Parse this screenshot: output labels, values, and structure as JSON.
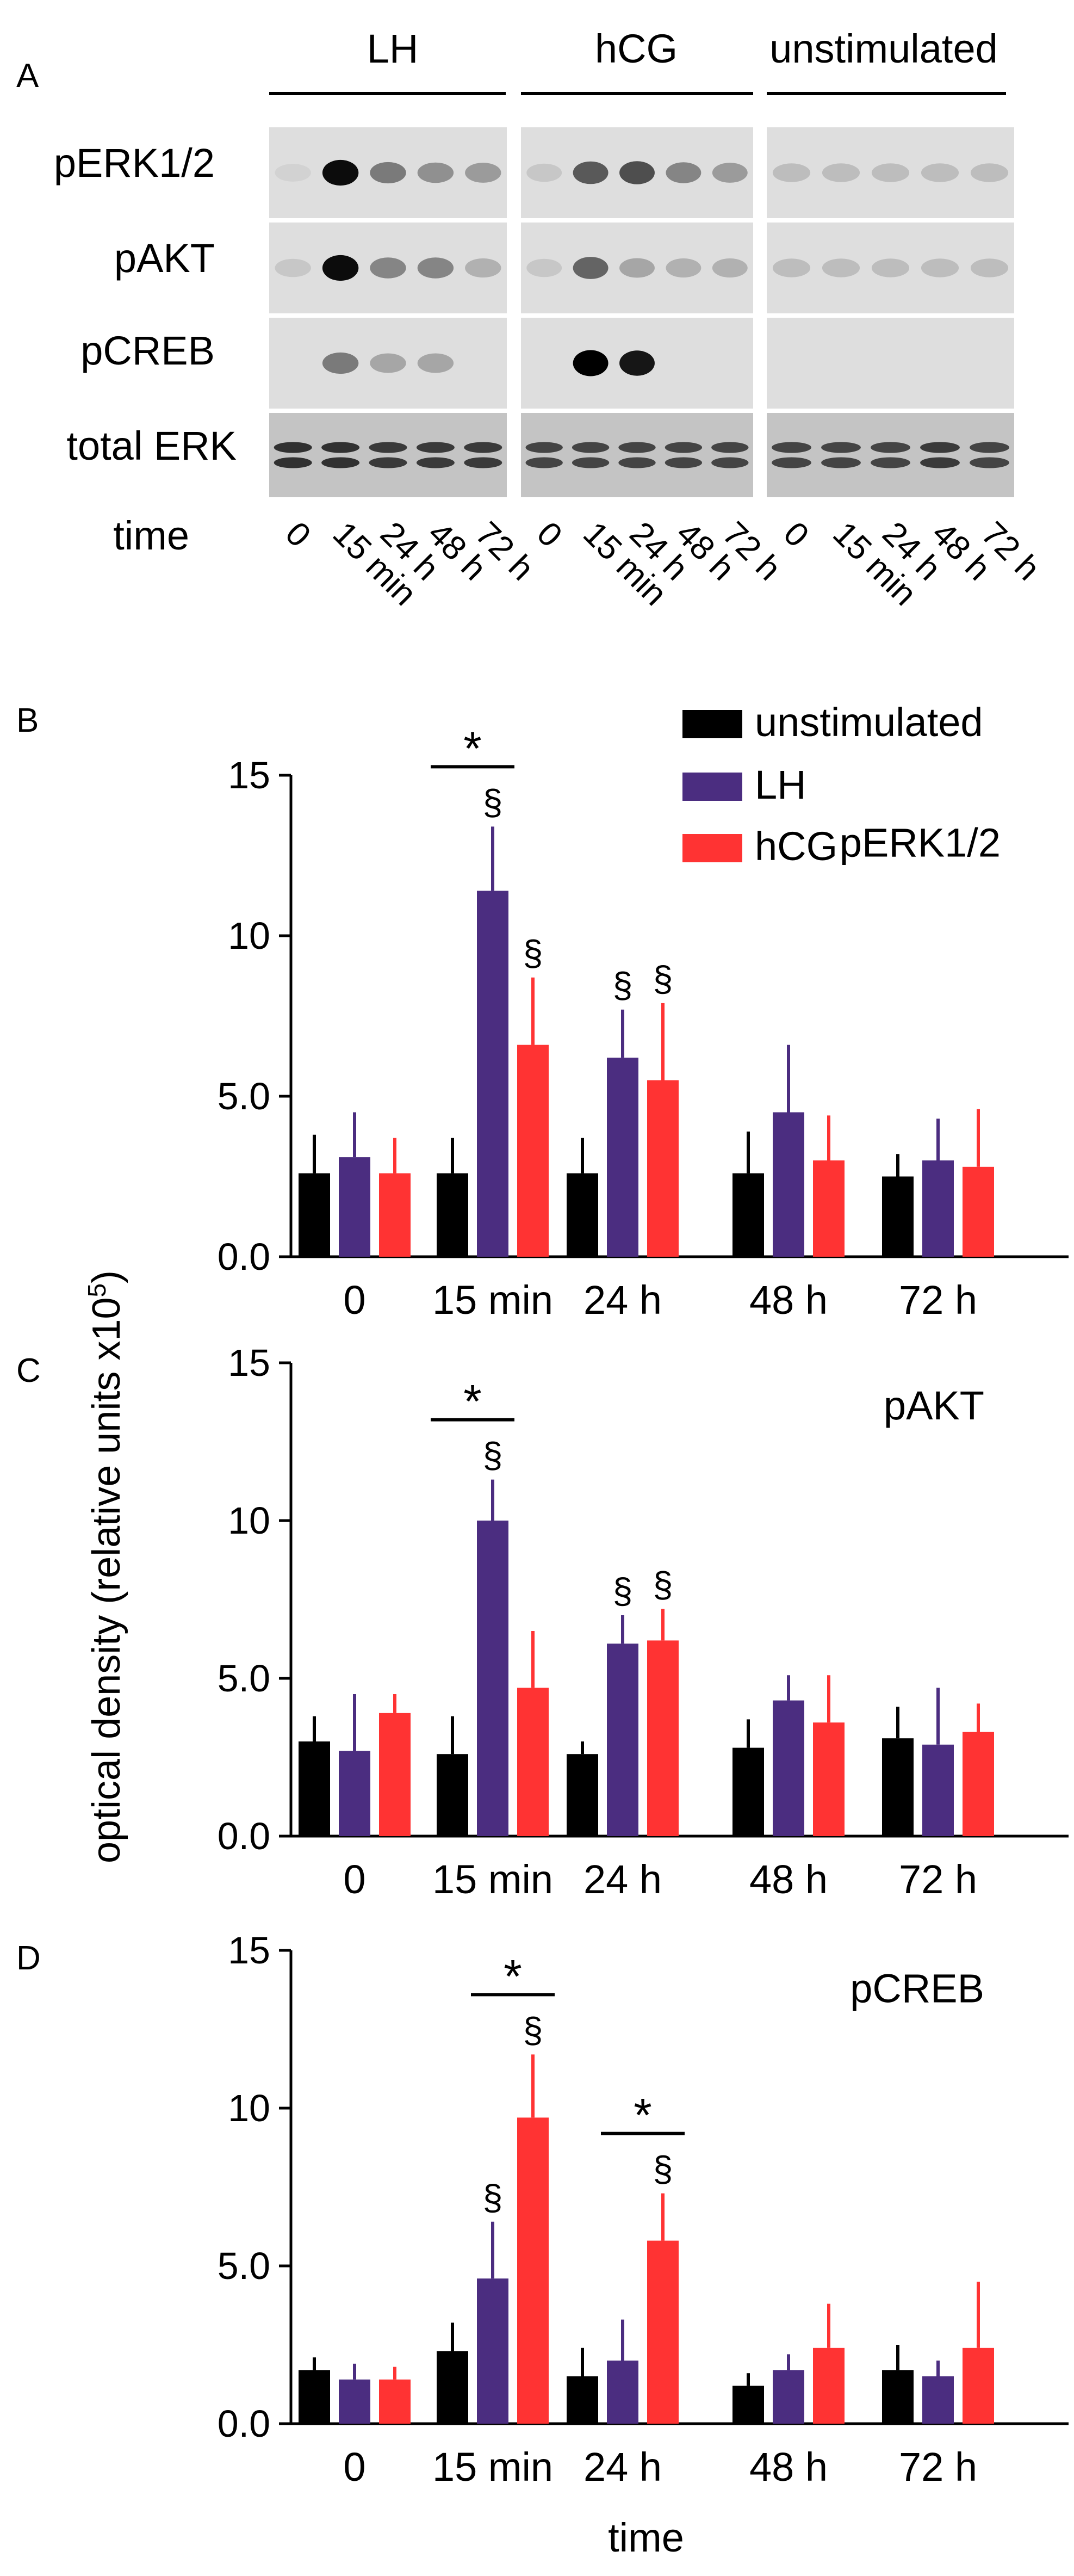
{
  "panel_a": {
    "label": "A",
    "groups": [
      "LH",
      "hCG",
      "unstimulated"
    ],
    "rows": [
      "pERK1/2",
      "pAKT",
      "pCREB",
      "total ERK"
    ],
    "time_label": "time",
    "lane_labels": [
      [
        "0",
        "15 min",
        "24 h",
        "48 h",
        "72 h"
      ],
      [
        "0",
        "15 min",
        "24 h",
        "48 h",
        "72 h"
      ],
      [
        "0",
        "15 min",
        "24 h",
        "48 h",
        "72 h"
      ]
    ],
    "blot": {
      "pERK1/2": [
        [
          0.05,
          0.95,
          0.45,
          0.35,
          0.3
        ],
        [
          0.1,
          0.6,
          0.65,
          0.4,
          0.3
        ],
        [
          0.15,
          0.15,
          0.15,
          0.15,
          0.15
        ]
      ],
      "pAKT": [
        [
          0.1,
          0.95,
          0.4,
          0.4,
          0.2
        ],
        [
          0.1,
          0.55,
          0.25,
          0.2,
          0.2
        ],
        [
          0.15,
          0.15,
          0.15,
          0.15,
          0.15
        ]
      ],
      "pCREB": [
        [
          0.0,
          0.45,
          0.25,
          0.25,
          0.0
        ],
        [
          0.0,
          1.0,
          0.9,
          0.0,
          0.0
        ],
        [
          0.0,
          0.0,
          0.0,
          0.0,
          0.0
        ]
      ],
      "total ERK": [
        [
          0.75,
          0.75,
          0.7,
          0.7,
          0.7
        ],
        [
          0.65,
          0.65,
          0.65,
          0.65,
          0.65
        ],
        [
          0.65,
          0.65,
          0.65,
          0.7,
          0.65
        ]
      ]
    }
  },
  "shared": {
    "ylabel": "optical density (relative units x10",
    "ylabel_sup": "5",
    "ylabel_close": ")",
    "xlabel": "time",
    "colors": {
      "unstimulated": "#000000",
      "LH": "#4b2d80",
      "hCG": "#ff3333"
    },
    "legend": [
      "unstimulated",
      "LH",
      "hCG"
    ],
    "significance_marks": {
      "star": "*",
      "section": "§"
    }
  },
  "chart_data": [
    {
      "type": "bar",
      "panel": "B",
      "title": "pERK1/2",
      "categories": [
        "0",
        "15 min",
        "24 h",
        "48 h",
        "72 h"
      ],
      "ylim": [
        0,
        15
      ],
      "yticks": [
        "0.0",
        "5.0",
        "10",
        "15"
      ],
      "series": [
        {
          "name": "unstimulated",
          "values": [
            2.6,
            2.6,
            2.6,
            2.6,
            2.5
          ],
          "errors": [
            1.2,
            1.1,
            1.1,
            1.3,
            0.7
          ]
        },
        {
          "name": "LH",
          "values": [
            3.1,
            11.4,
            6.2,
            4.5,
            3.0
          ],
          "errors": [
            1.4,
            2.0,
            1.5,
            2.1,
            1.3
          ]
        },
        {
          "name": "hCG",
          "values": [
            2.6,
            6.6,
            5.5,
            3.0,
            2.8
          ],
          "errors": [
            1.1,
            2.1,
            2.4,
            1.4,
            1.8
          ]
        }
      ],
      "section_marks": [
        [
          1,
          1
        ],
        [
          1,
          2
        ],
        [
          2,
          1
        ],
        [
          2,
          2
        ]
      ],
      "stars": [
        [
          1,
          0,
          1
        ]
      ]
    },
    {
      "type": "bar",
      "panel": "C",
      "title": "pAKT",
      "categories": [
        "0",
        "15 min",
        "24 h",
        "48 h",
        "72 h"
      ],
      "ylim": [
        0,
        15
      ],
      "yticks": [
        "0.0",
        "5.0",
        "10",
        "15"
      ],
      "series": [
        {
          "name": "unstimulated",
          "values": [
            3.0,
            2.6,
            2.6,
            2.8,
            3.1
          ],
          "errors": [
            0.8,
            1.2,
            0.4,
            0.9,
            1.0
          ]
        },
        {
          "name": "LH",
          "values": [
            2.7,
            10.0,
            6.1,
            4.3,
            2.9
          ],
          "errors": [
            1.8,
            1.3,
            0.9,
            0.8,
            1.8
          ]
        },
        {
          "name": "hCG",
          "values": [
            3.9,
            4.7,
            6.2,
            3.6,
            3.3
          ],
          "errors": [
            0.6,
            1.8,
            1.0,
            1.5,
            0.9
          ]
        }
      ],
      "section_marks": [
        [
          1,
          1
        ],
        [
          2,
          1
        ],
        [
          2,
          2
        ]
      ],
      "stars": [
        [
          1,
          0,
          1
        ]
      ]
    },
    {
      "type": "bar",
      "panel": "D",
      "title": "pCREB",
      "categories": [
        "0",
        "15 min",
        "24 h",
        "48 h",
        "72 h"
      ],
      "ylim": [
        0,
        15
      ],
      "yticks": [
        "0.0",
        "5.0",
        "10",
        "15"
      ],
      "series": [
        {
          "name": "unstimulated",
          "values": [
            1.7,
            2.3,
            1.5,
            1.2,
            1.7
          ],
          "errors": [
            0.4,
            0.9,
            0.9,
            0.4,
            0.8
          ]
        },
        {
          "name": "LH",
          "values": [
            1.4,
            4.6,
            2.0,
            1.7,
            1.5
          ],
          "errors": [
            0.5,
            1.8,
            1.3,
            0.5,
            0.5
          ]
        },
        {
          "name": "hCG",
          "values": [
            1.4,
            9.7,
            5.8,
            2.4,
            2.4
          ],
          "errors": [
            0.4,
            2.0,
            1.5,
            1.4,
            2.1
          ]
        }
      ],
      "section_marks": [
        [
          1,
          1
        ],
        [
          1,
          2
        ],
        [
          2,
          2
        ]
      ],
      "stars": [
        [
          1,
          1,
          2
        ],
        [
          2,
          1,
          2
        ]
      ]
    }
  ]
}
